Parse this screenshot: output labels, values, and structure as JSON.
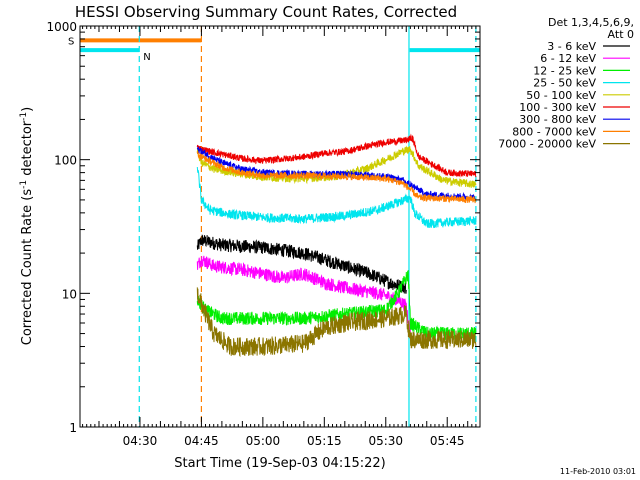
{
  "chart_data": {
    "type": "line",
    "title": "HESSI Observing Summary Count Rates, Corrected",
    "xlabel": "Start Time (19-Sep-03 04:15:22)",
    "ylabel_main": "Corrected Count Rate (s",
    "ylabel_sup1": "-1",
    "ylabel_mid": " detector",
    "ylabel_sup2": "-1",
    "ylabel_end": ")",
    "yscale": "log",
    "ylim": [
      1,
      1000
    ],
    "xlim": [
      "04:15:22",
      "05:53:00"
    ],
    "y_ticks": [
      "1",
      "10",
      "100",
      "1000"
    ],
    "x_ticks": [
      "04:30",
      "04:45",
      "05:00",
      "05:15",
      "05:30",
      "05:45"
    ],
    "timestamp": "11-Feb-2010 03:01",
    "legend": {
      "header1": "Det 1,3,4,5,6,9,",
      "header2": "Att 0",
      "placement": "right"
    },
    "flags": [
      {
        "label": "S",
        "color": "#ff7f00",
        "value": 780,
        "start": "04:15:22",
        "end": "04:45:00"
      },
      {
        "label": "N",
        "color": "#00e5ee",
        "value": 660,
        "start": "04:15:22",
        "end": "04:29:50"
      },
      {
        "label": "",
        "color": "#00e5ee",
        "value": 660,
        "start": "05:35:50",
        "end": "05:53:00"
      }
    ],
    "markers": [
      {
        "time": "04:29:50",
        "color": "#00e5ee",
        "dashed": true
      },
      {
        "time": "04:45:00",
        "color": "#ff7f00",
        "dashed": true
      },
      {
        "time": "05:35:40",
        "color": "#00e5ee",
        "dashed": false
      },
      {
        "time": "05:52:00",
        "color": "#00e5ee",
        "dashed": true
      }
    ],
    "series": [
      {
        "name": "3 - 6 keV",
        "color": "#000000",
        "noise": 0.05,
        "points": [
          [
            "04:44:00",
            22
          ],
          [
            "04:45:00",
            25
          ],
          [
            "04:50:00",
            23
          ],
          [
            "05:00:00",
            22
          ],
          [
            "05:10:00",
            20
          ],
          [
            "05:20:00",
            16
          ],
          [
            "05:26:00",
            14
          ],
          [
            "05:31:00",
            12
          ],
          [
            "05:35:00",
            11
          ]
        ]
      },
      {
        "name": "6 - 12 keV",
        "color": "#ff00ff",
        "noise": 0.05,
        "points": [
          [
            "04:44:00",
            16
          ],
          [
            "04:45:00",
            18
          ],
          [
            "04:48:00",
            16
          ],
          [
            "04:55:00",
            15
          ],
          [
            "05:00:00",
            14
          ],
          [
            "05:05:00",
            13
          ],
          [
            "05:10:00",
            14
          ],
          [
            "05:15:00",
            12
          ],
          [
            "05:20:00",
            11
          ],
          [
            "05:28:00",
            10
          ],
          [
            "05:33:00",
            9
          ],
          [
            "05:35:00",
            8
          ],
          [
            "05:36:00",
            5
          ]
        ]
      },
      {
        "name": "12 - 25 keV",
        "color": "#00ee00",
        "noise": 0.05,
        "points": [
          [
            "04:44:00",
            9
          ],
          [
            "04:46:00",
            7.5
          ],
          [
            "04:50:00",
            6.5
          ],
          [
            "05:00:00",
            6.5
          ],
          [
            "05:10:00",
            6.5
          ],
          [
            "05:20:00",
            7
          ],
          [
            "05:30:00",
            7.5
          ],
          [
            "05:33:00",
            10
          ],
          [
            "05:35:30",
            14
          ],
          [
            "05:36:00",
            6
          ],
          [
            "05:40:00",
            5
          ],
          [
            "05:52:00",
            5
          ]
        ]
      },
      {
        "name": "25 - 50 keV",
        "color": "#00e5ee",
        "noise": 0.035,
        "points": [
          [
            "04:44:00",
            90
          ],
          [
            "04:45:00",
            50
          ],
          [
            "04:47:00",
            42
          ],
          [
            "04:52:00",
            39
          ],
          [
            "05:00:00",
            37
          ],
          [
            "05:10:00",
            36
          ],
          [
            "05:20:00",
            38
          ],
          [
            "05:28:00",
            42
          ],
          [
            "05:33:00",
            48
          ],
          [
            "05:36:00",
            52
          ],
          [
            "05:37:00",
            40
          ],
          [
            "05:40:00",
            33
          ],
          [
            "05:45:00",
            34
          ],
          [
            "05:52:00",
            35
          ]
        ]
      },
      {
        "name": "50 - 100 keV",
        "color": "#cccc00",
        "noise": 0.03,
        "points": [
          [
            "04:44:00",
            115
          ],
          [
            "04:45:00",
            95
          ],
          [
            "04:48:00",
            85
          ],
          [
            "04:55:00",
            78
          ],
          [
            "05:00:00",
            74
          ],
          [
            "05:10:00",
            72
          ],
          [
            "05:18:00",
            75
          ],
          [
            "05:25:00",
            85
          ],
          [
            "05:30:00",
            100
          ],
          [
            "05:34:00",
            115
          ],
          [
            "05:36:00",
            120
          ],
          [
            "05:38:00",
            90
          ],
          [
            "05:44:00",
            70
          ],
          [
            "05:52:00",
            65
          ]
        ]
      },
      {
        "name": "100 - 300 keV",
        "color": "#ee0000",
        "noise": 0.025,
        "points": [
          [
            "04:44:00",
            125
          ],
          [
            "04:45:00",
            120
          ],
          [
            "04:50:00",
            110
          ],
          [
            "04:55:00",
            102
          ],
          [
            "05:00:00",
            98
          ],
          [
            "05:10:00",
            105
          ],
          [
            "05:15:00",
            112
          ],
          [
            "05:20:00",
            115
          ],
          [
            "05:25:00",
            125
          ],
          [
            "05:30:00",
            135
          ],
          [
            "05:35:00",
            140
          ],
          [
            "05:36:30",
            145
          ],
          [
            "05:38:00",
            105
          ],
          [
            "05:42:00",
            90
          ],
          [
            "05:45:00",
            80
          ],
          [
            "05:52:00",
            78
          ]
        ]
      },
      {
        "name": "300 - 800 keV",
        "color": "#0000ee",
        "noise": 0.025,
        "points": [
          [
            "04:44:00",
            120
          ],
          [
            "04:45:00",
            115
          ],
          [
            "04:50:00",
            95
          ],
          [
            "04:55:00",
            85
          ],
          [
            "05:00:00",
            80
          ],
          [
            "05:10:00",
            78
          ],
          [
            "05:20:00",
            78
          ],
          [
            "05:30:00",
            75
          ],
          [
            "05:34:00",
            70
          ],
          [
            "05:36:00",
            65
          ],
          [
            "05:40:00",
            55
          ],
          [
            "05:52:00",
            52
          ]
        ]
      },
      {
        "name": "800 - 7000 keV",
        "color": "#ff7f00",
        "noise": 0.025,
        "points": [
          [
            "04:44:00",
            110
          ],
          [
            "04:45:00",
            105
          ],
          [
            "04:50:00",
            88
          ],
          [
            "04:55:00",
            80
          ],
          [
            "05:00:00",
            76
          ],
          [
            "05:10:00",
            76
          ],
          [
            "05:20:00",
            75
          ],
          [
            "05:30:00",
            72
          ],
          [
            "05:34:00",
            67
          ],
          [
            "05:36:00",
            60
          ],
          [
            "05:38:00",
            52
          ],
          [
            "05:52:00",
            50
          ]
        ]
      },
      {
        "name": "7000 - 20000 keV",
        "color": "#8b7500",
        "noise": 0.07,
        "points": [
          [
            "04:44:00",
            10
          ],
          [
            "04:46:00",
            7
          ],
          [
            "04:48:00",
            5
          ],
          [
            "04:52:00",
            4
          ],
          [
            "05:00:00",
            4
          ],
          [
            "05:10:00",
            4.2
          ],
          [
            "05:15:00",
            5.5
          ],
          [
            "05:20:00",
            6
          ],
          [
            "05:30:00",
            6.5
          ],
          [
            "05:35:00",
            7
          ],
          [
            "05:36:00",
            4.5
          ],
          [
            "05:45:00",
            4.5
          ],
          [
            "05:52:00",
            4.5
          ]
        ]
      }
    ]
  }
}
